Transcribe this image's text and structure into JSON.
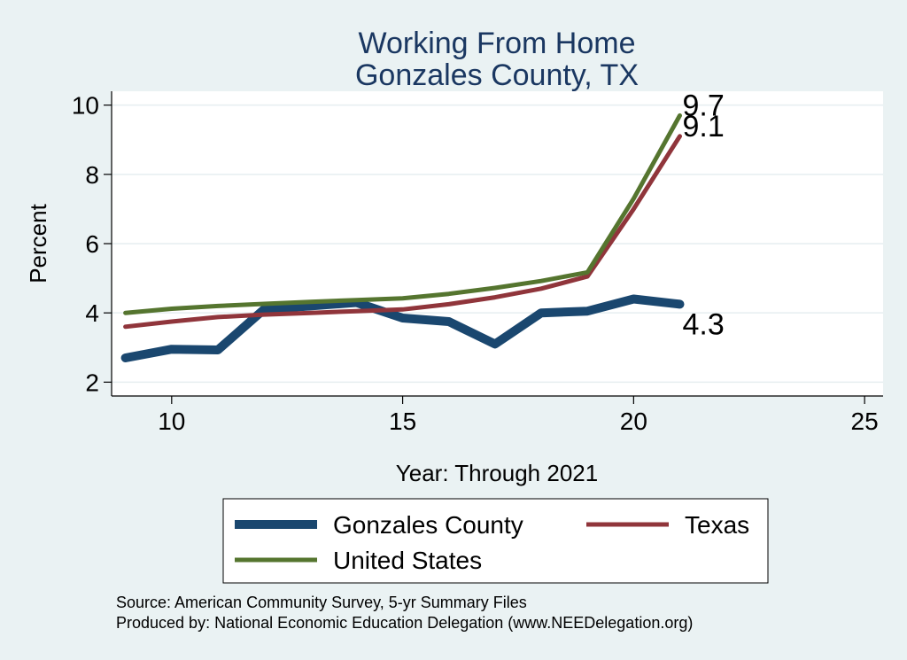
{
  "chart_data": {
    "type": "line",
    "title": [
      "Working From Home",
      "Gonzales County, TX"
    ],
    "xlabel": "Year: Through 2021",
    "ylabel": "Percent",
    "xlim": [
      8.7,
      25.4
    ],
    "ylim": [
      1.6,
      10.4
    ],
    "xticks": [
      10,
      15,
      20,
      25
    ],
    "yticks": [
      2,
      4,
      6,
      8,
      10
    ],
    "grid": true,
    "legend_position": "bottom",
    "series": [
      {
        "name": "Gonzales County",
        "color": "#1a476f",
        "width": 10,
        "x": [
          9,
          10,
          11,
          12,
          13,
          14,
          15,
          16,
          17,
          18,
          19,
          20,
          21
        ],
        "y": [
          2.7,
          2.95,
          2.93,
          4.1,
          4.2,
          4.3,
          3.85,
          3.75,
          3.1,
          4.0,
          4.05,
          4.4,
          4.25
        ],
        "end_label": "4.3"
      },
      {
        "name": "Texas",
        "color": "#90353b",
        "width": 5,
        "x": [
          9,
          10,
          11,
          12,
          13,
          14,
          15,
          16,
          17,
          18,
          19,
          20,
          21
        ],
        "y": [
          3.6,
          3.75,
          3.88,
          3.95,
          4.0,
          4.05,
          4.1,
          4.25,
          4.45,
          4.7,
          5.05,
          7.0,
          9.1
        ],
        "end_label": "9.1"
      },
      {
        "name": "United States",
        "color": "#55752f",
        "width": 5,
        "x": [
          9,
          10,
          11,
          12,
          13,
          14,
          15,
          16,
          17,
          18,
          19,
          20,
          21
        ],
        "y": [
          4.0,
          4.12,
          4.2,
          4.26,
          4.32,
          4.37,
          4.42,
          4.55,
          4.72,
          4.92,
          5.17,
          7.3,
          9.7
        ],
        "end_label": "9.7"
      }
    ]
  },
  "notes": {
    "source": "Source: American Community Survey, 5-yr Summary Files",
    "produced": "Produced by: National Economic Education Delegation (www.NEEDelegation.org)"
  }
}
